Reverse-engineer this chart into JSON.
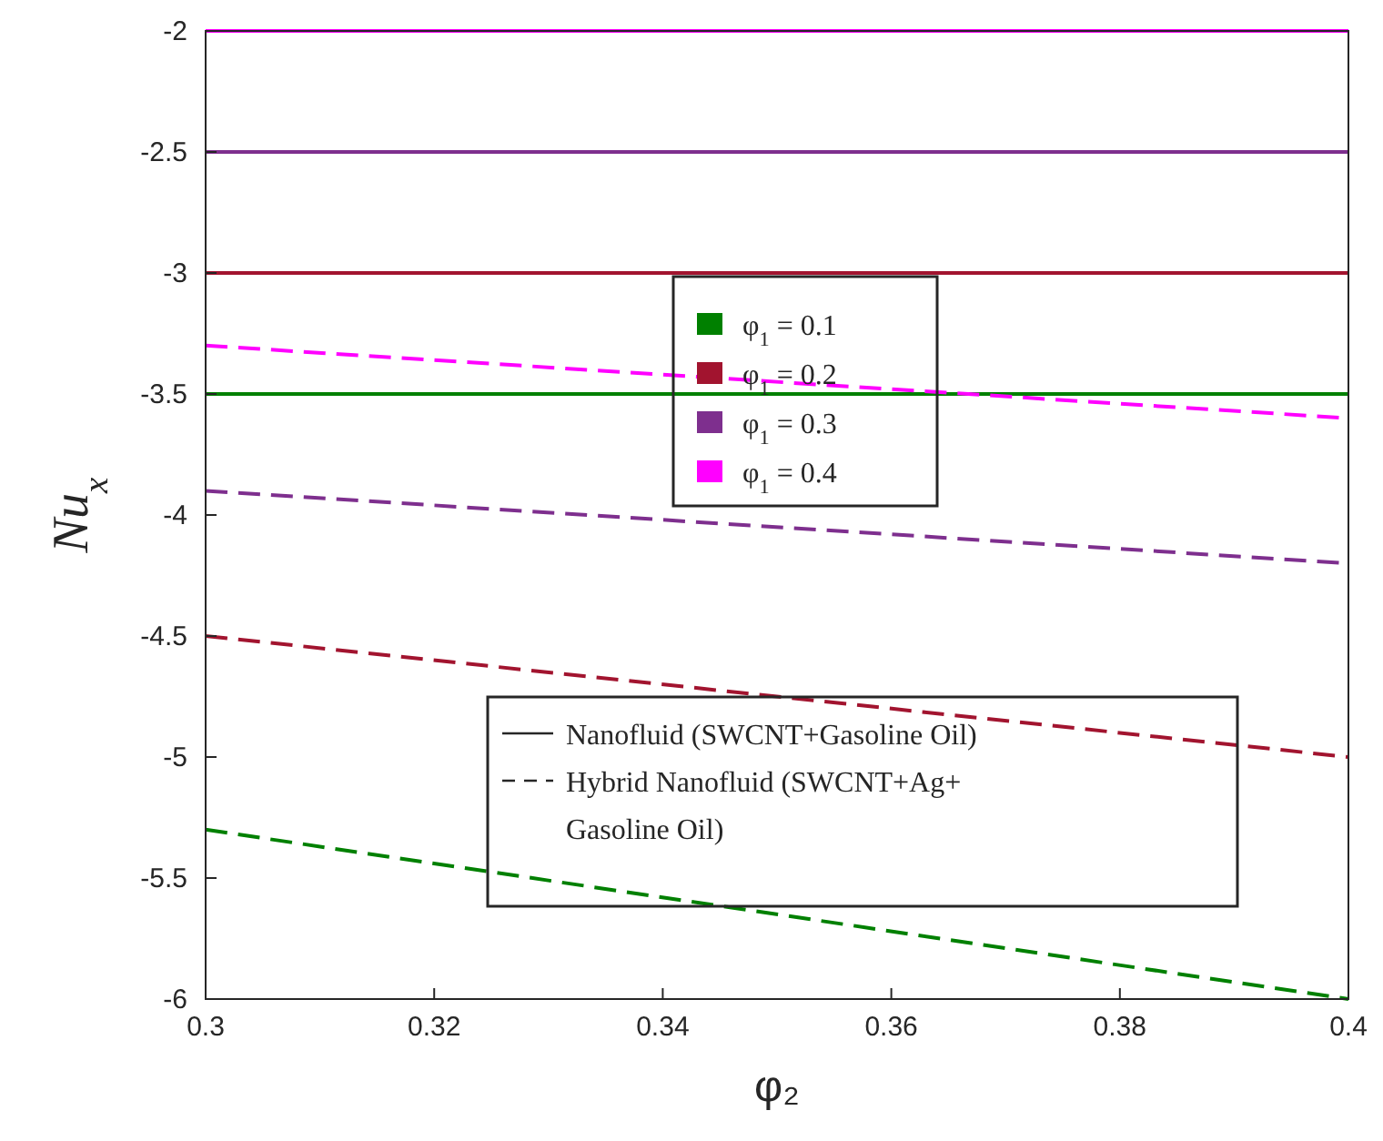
{
  "chart_data": {
    "type": "line",
    "xlabel": "φ₂",
    "ylabel": "Nu$_{x}$",
    "x": [
      0.3,
      0.4
    ],
    "xlim": [
      0.3,
      0.4
    ],
    "xticks": [
      0.3,
      0.32,
      0.34,
      0.36,
      0.38,
      0.4
    ],
    "ylim": [
      -6,
      -2
    ],
    "yticks": [
      -6,
      -5.5,
      -5,
      -4.5,
      -4,
      -3.5,
      -3,
      -2.5,
      -2
    ],
    "grid": false,
    "legend": "top",
    "marker": "none",
    "series": [
      {
        "name": "φ$_{1}$ = 0.1",
        "color": "#008000",
        "values": [
          -3.5,
          -3.5
        ],
        "line_style": "solid"
      },
      {
        "name": "φ$_{1}$ = 0.2",
        "color": "#a2142f",
        "values": [
          -3,
          -3
        ],
        "line_style": "solid"
      },
      {
        "name": "φ$_{1}$ = 0.3",
        "color": "#7e2f8e",
        "values": [
          -2.5,
          -2.5
        ],
        "line_style": "solid"
      },
      {
        "name": "φ$_{1}$ = 0.4",
        "color": "#ff00ff",
        "values": [
          -2,
          -2
        ],
        "line_style": "solid"
      },
      {
        "color": "#008000",
        "values": [
          -5.3,
          -6
        ],
        "line_style": "dashed"
      },
      {
        "color": "#a2142f",
        "values": [
          -4.5,
          -5
        ],
        "line_style": "dashed"
      },
      {
        "color": "#7e2f8e",
        "values": [
          -3.9,
          -4.2
        ],
        "line_style": "dashed"
      },
      {
        "color": "#ff00ff",
        "values": [
          -3.3,
          -3.6
        ],
        "line_style": "dashed"
      }
    ],
    "annotations": [
      "Nanofluid (SWCNT+Gasoline Oil)",
      "Hybrid Nanofluid (SWCNT+Ag+ Gasoline Oil)"
    ]
  }
}
